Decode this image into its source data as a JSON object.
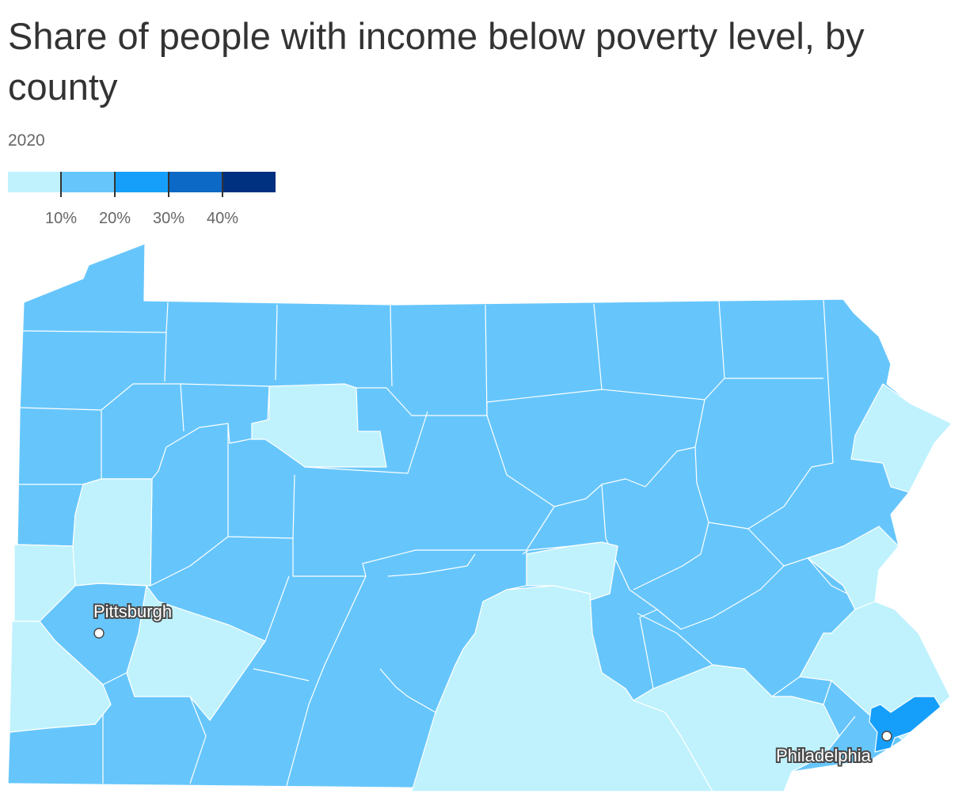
{
  "header": {
    "title": "Share of people with income below poverty level, by county",
    "subtitle": "2020"
  },
  "legend": {
    "colors": [
      "#bff2fd",
      "#66c6fc",
      "#169ffa",
      "#0d69c6",
      "#003181"
    ],
    "ticks": [
      "10%",
      "20%",
      "30%",
      "40%"
    ],
    "breaks": [
      10,
      20,
      30,
      40
    ]
  },
  "map": {
    "cities": [
      {
        "name": "Pittsburgh"
      },
      {
        "name": "Philadelphia"
      }
    ],
    "fills": {
      "base": "#66c6fc",
      "low": "#bff2fd",
      "philadelphia": "#169ffa"
    }
  }
}
